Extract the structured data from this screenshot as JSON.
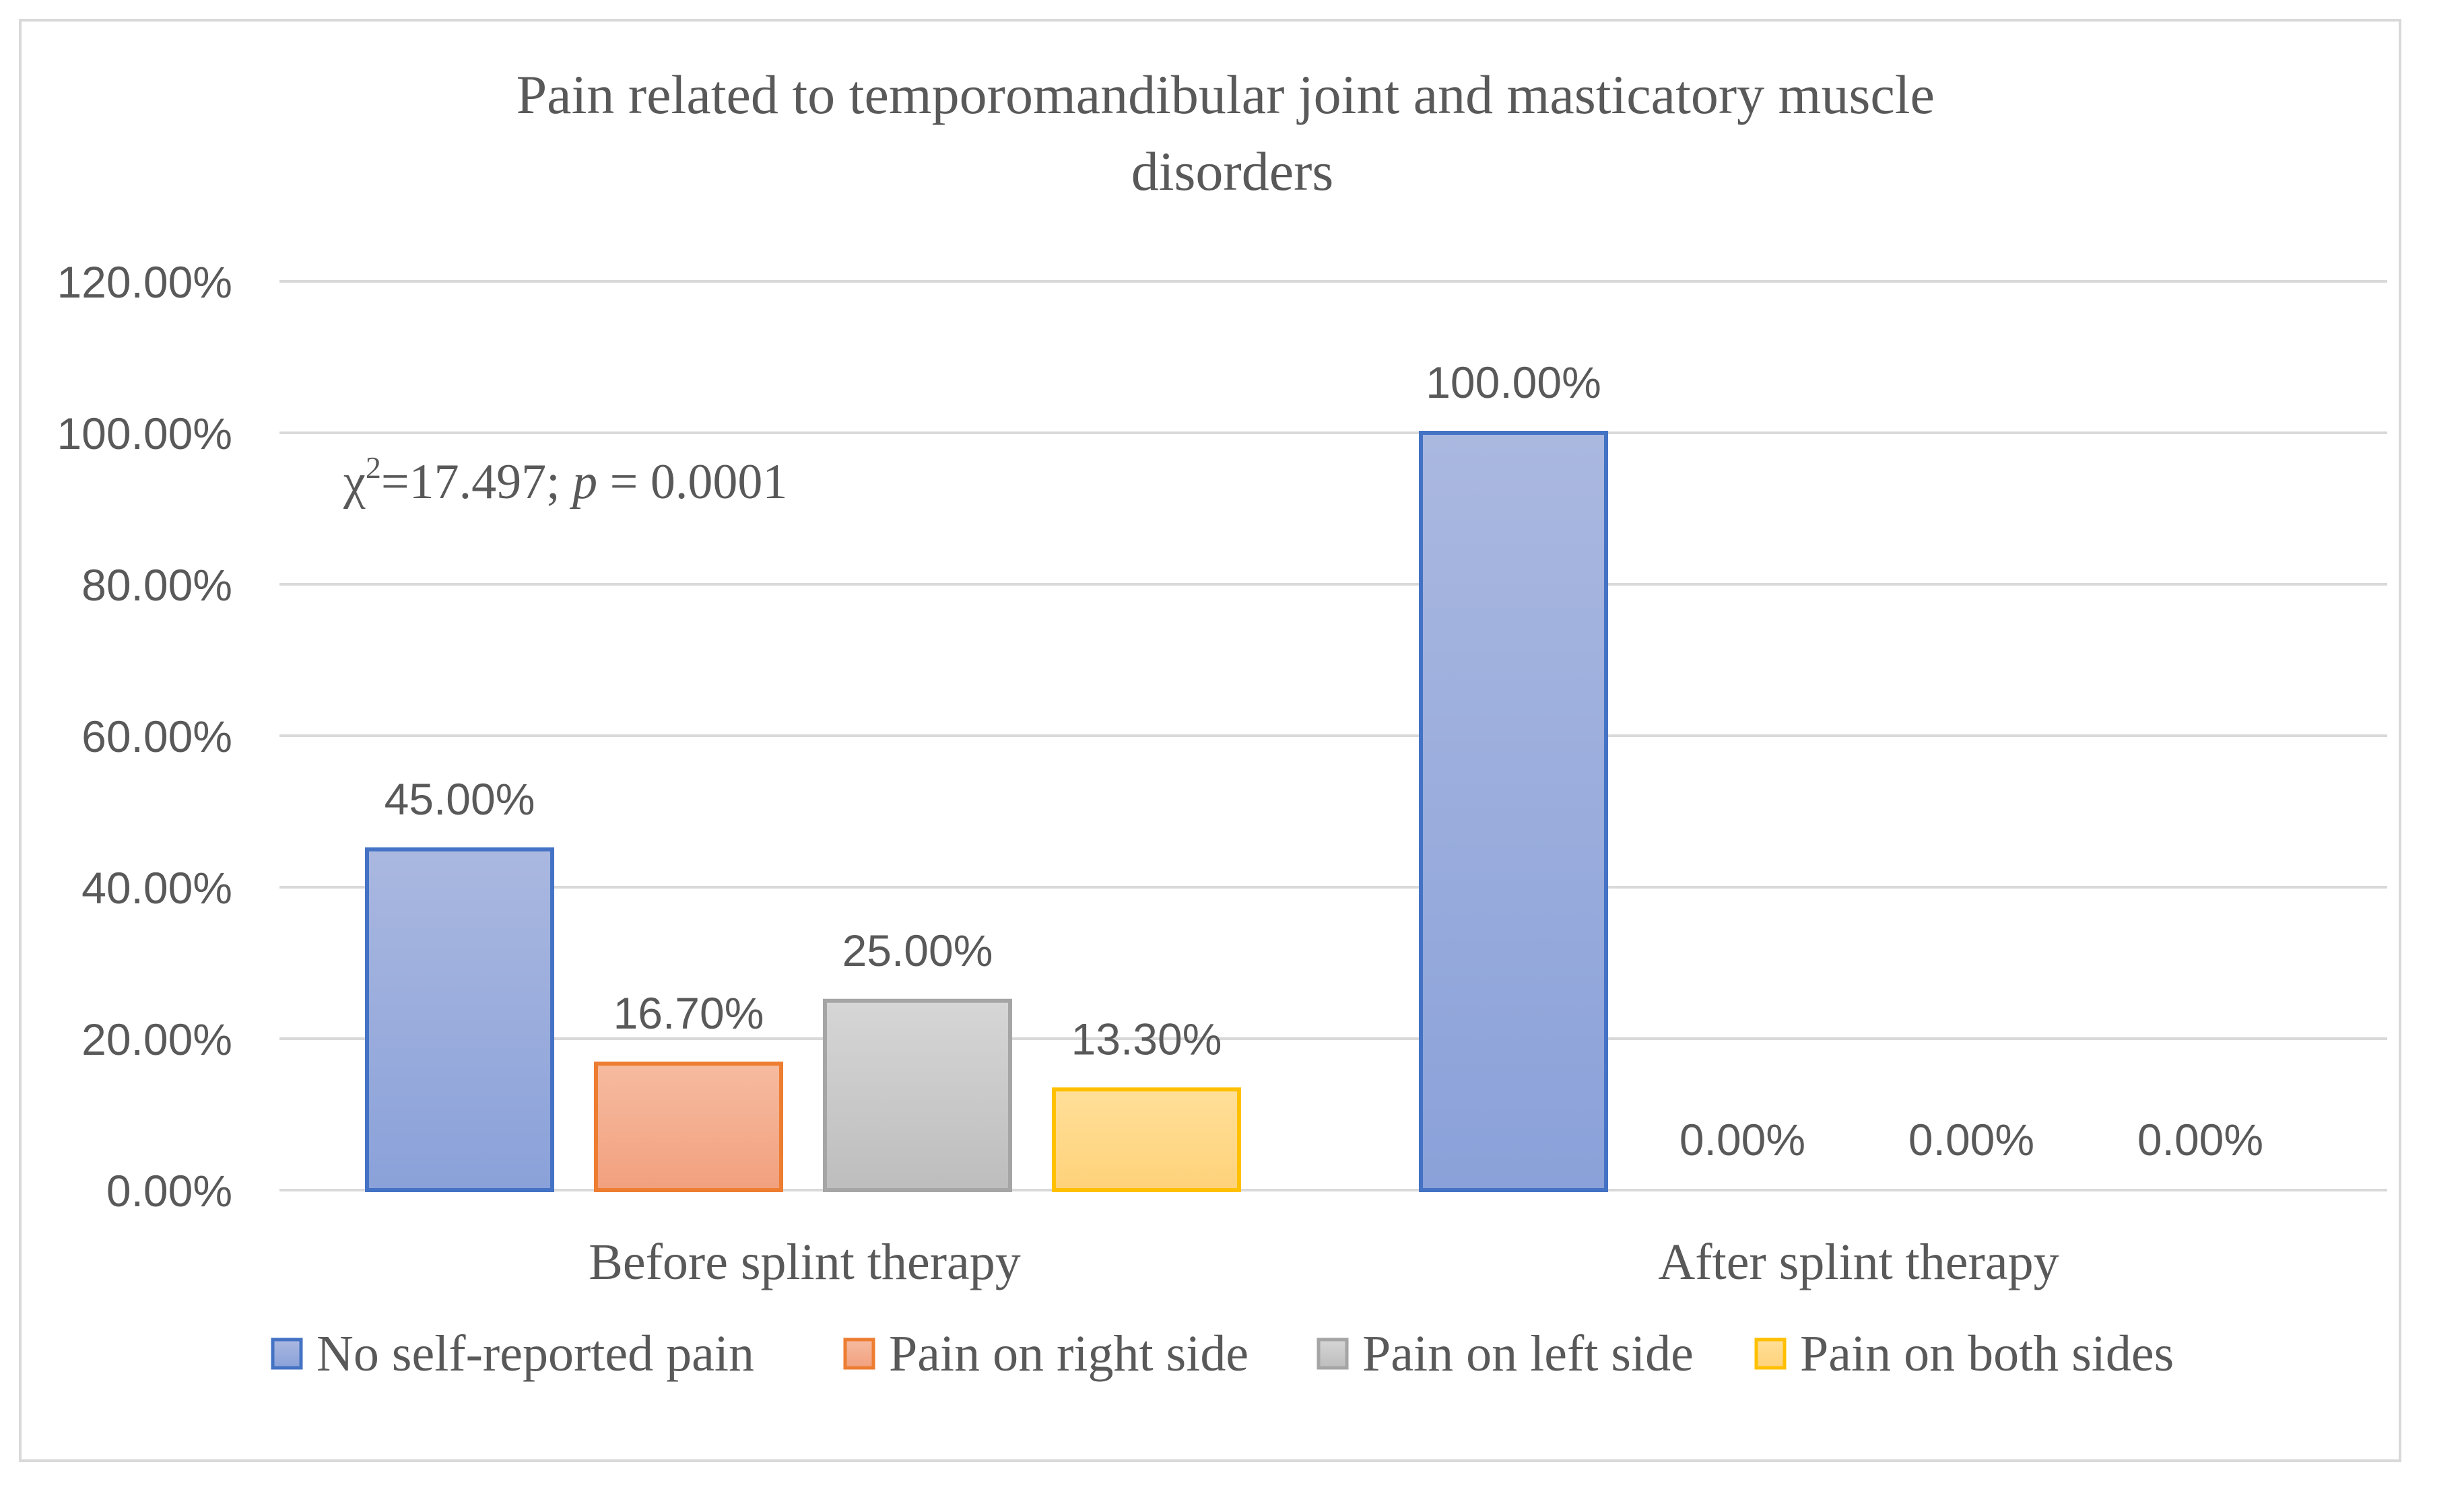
{
  "chart_data": {
    "type": "bar",
    "title": "Pain related to temporomandibular joint and masticatory muscle disorders",
    "title_lines": [
      "Pain related to temporomandibular joint and masticatory muscle",
      "disorders"
    ],
    "categories": [
      "Before splint therapy",
      "After splint therapy"
    ],
    "series": [
      {
        "name": "No self-reported pain",
        "values": [
          45.0,
          100.0
        ],
        "labels": [
          "45.00%",
          "100.00%"
        ],
        "color": "#4472c4",
        "fill_top": "#aab8e0",
        "fill_bottom": "#8aa1d9"
      },
      {
        "name": "Pain on right side",
        "values": [
          16.7,
          0.0
        ],
        "labels": [
          "16.70%",
          "0.00%"
        ],
        "color": "#ed7d31",
        "fill_top": "#f6bba0",
        "fill_bottom": "#f2a07e"
      },
      {
        "name": "Pain on left side",
        "values": [
          25.0,
          0.0
        ],
        "labels": [
          "25.00%",
          "0.00%"
        ],
        "color": "#a5a5a5",
        "fill_top": "#d6d6d6",
        "fill_bottom": "#bdbdbd"
      },
      {
        "name": "Pain on both sides",
        "values": [
          13.3,
          0.0
        ],
        "labels": [
          "13.30%",
          "0.00%"
        ],
        "color": "#ffc000",
        "fill_top": "#ffdf98",
        "fill_bottom": "#ffd27a"
      }
    ],
    "ylim": [
      0,
      120
    ],
    "yticks": [
      0,
      20,
      40,
      60,
      80,
      100,
      120
    ],
    "ytick_labels": [
      "0.00%",
      "20.00%",
      "40.00%",
      "60.00%",
      "80.00%",
      "100.00%",
      "120.00%"
    ],
    "xlabel": "",
    "ylabel": "",
    "grid": true,
    "legend_position": "bottom",
    "annotation": {
      "chi": "χ",
      "sup": "2",
      "stat": "=17.497; ",
      "p": "p",
      "pval": " = 0.0001"
    }
  },
  "colors": {
    "grid": "#d9d9d9",
    "text": "#595959",
    "frame": "#d9d9d9"
  }
}
